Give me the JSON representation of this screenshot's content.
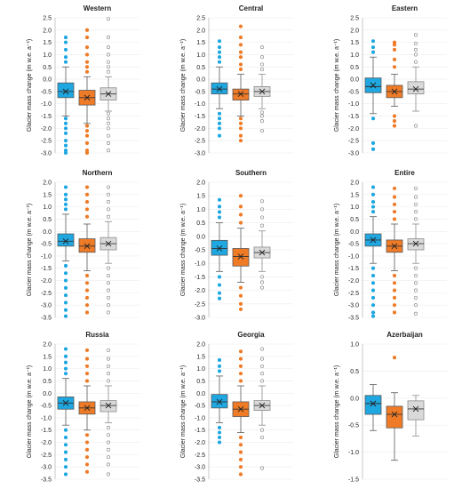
{
  "colors": {
    "A": "#1ea7e1",
    "B": "#ef7b27",
    "C": "#d9d9d9"
  },
  "chart_data": [
    {
      "type": "box",
      "title": "Western",
      "ylabel": "Glacier mass change (m w.e. a⁻¹)",
      "ylim": [
        -3.0,
        2.5
      ],
      "yticks": [
        "2.5",
        "2.0",
        "1.5",
        "1.0",
        "0.5",
        "0.0",
        "-0.5",
        "-1.0",
        "-1.5",
        "-2.0",
        "-2.5",
        "-3.0"
      ],
      "boxes": [
        {
          "q1": -0.75,
          "median": -0.5,
          "q3": -0.15,
          "mean": -0.5,
          "wlo": -1.5,
          "whi": 0.5,
          "outliers": [
            0.7,
            0.9,
            1.2,
            1.5,
            1.7,
            -1.6,
            -1.8,
            -2.0,
            -2.2,
            -2.5,
            -2.7,
            -2.9,
            -3.0
          ]
        },
        {
          "q1": -1.05,
          "median": -0.75,
          "q3": -0.45,
          "mean": -0.75,
          "wlo": -1.8,
          "whi": 0.1,
          "outliers": [
            0.3,
            0.5,
            0.7,
            1.0,
            1.3,
            1.7,
            2.0,
            -1.9,
            -2.1,
            -2.3,
            -2.6,
            -2.9,
            -3.0
          ]
        },
        {
          "q1": -0.85,
          "median": -0.6,
          "q3": -0.35,
          "mean": -0.6,
          "wlo": -1.3,
          "whi": 0.1,
          "outliers": [
            0.3,
            0.5,
            0.7,
            1.0,
            1.3,
            1.7,
            2.45,
            -1.4,
            -1.6,
            -1.8,
            -2.0,
            -2.3,
            -2.6,
            -2.9
          ]
        }
      ]
    },
    {
      "type": "box",
      "title": "Central",
      "ylabel": "Glacier mass change (m w.e. a⁻¹)",
      "ylim": [
        -3.0,
        2.5
      ],
      "yticks": [
        "2.5",
        "2.0",
        "1.5",
        "1.0",
        "0.5",
        "0.0",
        "-0.5",
        "-1.0",
        "-1.5",
        "-2.0",
        "-2.5",
        "-3.0"
      ],
      "boxes": [
        {
          "q1": -0.6,
          "median": -0.4,
          "q3": -0.15,
          "mean": -0.4,
          "wlo": -1.2,
          "whi": 0.5,
          "outliers": [
            0.7,
            0.9,
            1.1,
            1.3,
            1.55,
            -1.4,
            -1.6,
            -1.8,
            -2.0,
            -2.3
          ]
        },
        {
          "q1": -0.85,
          "median": -0.6,
          "q3": -0.4,
          "mean": -0.6,
          "wlo": -1.5,
          "whi": 0.2,
          "outliers": [
            0.4,
            0.6,
            0.9,
            1.1,
            1.4,
            1.7,
            2.15,
            -1.6,
            -1.8,
            -2.0,
            -2.3,
            -2.5
          ]
        },
        {
          "q1": -0.7,
          "median": -0.5,
          "q3": -0.3,
          "mean": -0.5,
          "wlo": -1.2,
          "whi": 0.2,
          "outliers": [
            0.4,
            0.6,
            0.9,
            1.3,
            -1.35,
            -1.5,
            -1.7,
            -2.1
          ]
        }
      ]
    },
    {
      "type": "box",
      "title": "Eastern",
      "ylabel": "Glacier mass change (m w.e. a⁻¹)",
      "ylim": [
        -3.0,
        2.5
      ],
      "yticks": [
        "2.5",
        "2.0",
        "1.5",
        "1.0",
        "0.5",
        "0.0",
        "-0.5",
        "-1.0",
        "-1.5",
        "-2.0",
        "-2.5",
        "-3.0"
      ],
      "boxes": [
        {
          "q1": -0.55,
          "median": -0.3,
          "q3": 0.05,
          "mean": -0.25,
          "wlo": -1.4,
          "whi": 0.9,
          "outliers": [
            1.1,
            1.3,
            1.55,
            -1.6,
            -2.6,
            -2.85
          ]
        },
        {
          "q1": -0.75,
          "median": -0.5,
          "q3": -0.25,
          "mean": -0.5,
          "wlo": -1.1,
          "whi": 0.2,
          "outliers": [
            0.5,
            0.8,
            1.2,
            1.4,
            1.5,
            -1.5,
            -1.7,
            -1.9
          ]
        },
        {
          "q1": -0.6,
          "median": -0.4,
          "q3": -0.1,
          "mean": -0.4,
          "wlo": -1.3,
          "whi": 0.5,
          "outliers": [
            0.7,
            1.0,
            1.2,
            1.45,
            1.8,
            -1.9
          ]
        }
      ]
    },
    {
      "type": "box",
      "title": "Northern",
      "ylabel": "Glacier mass change (m w.e. a⁻¹)",
      "ylim": [
        -3.5,
        2.0
      ],
      "yticks": [
        "2.0",
        "1.5",
        "1.0",
        "0.5",
        "0.0",
        "-0.5",
        "-1.0",
        "-1.5",
        "-2.0",
        "-2.5",
        "-3.0",
        "-3.5"
      ],
      "boxes": [
        {
          "q1": -0.6,
          "median": -0.4,
          "q3": -0.1,
          "mean": -0.4,
          "wlo": -1.2,
          "whi": 0.7,
          "outliers": [
            0.9,
            1.1,
            1.3,
            1.5,
            1.8,
            -1.4,
            -1.7,
            -2.0,
            -2.3,
            -2.6,
            -2.9,
            -3.2,
            -3.45
          ]
        },
        {
          "q1": -0.85,
          "median": -0.6,
          "q3": -0.3,
          "mean": -0.6,
          "wlo": -1.6,
          "whi": 0.3,
          "outliers": [
            0.6,
            0.9,
            1.2,
            1.5,
            1.8,
            -1.8,
            -2.1,
            -2.4,
            -2.7,
            -3.0,
            -3.3
          ]
        },
        {
          "q1": -0.75,
          "median": -0.5,
          "q3": -0.25,
          "mean": -0.5,
          "wlo": -1.3,
          "whi": 0.4,
          "outliers": [
            0.6,
            0.9,
            1.2,
            1.5,
            1.8,
            -1.5,
            -1.8,
            -2.1,
            -2.4,
            -2.7,
            -3.0,
            -3.3
          ]
        }
      ]
    },
    {
      "type": "box",
      "title": "Southern",
      "ylabel": "Glacier mass change (m w.e. a⁻¹)",
      "ylim": [
        -3.0,
        2.0
      ],
      "yticks": [
        "2.0",
        "1.5",
        "1.0",
        "0.5",
        "0.0",
        "-0.5",
        "-1.0",
        "-1.5",
        "-2.0",
        "-2.5",
        "-3.0"
      ],
      "boxes": [
        {
          "q1": -0.7,
          "median": -0.45,
          "q3": -0.15,
          "mean": -0.45,
          "wlo": -1.3,
          "whi": 0.5,
          "outliers": [
            0.7,
            0.9,
            1.1,
            1.35,
            -1.5,
            -1.8,
            -2.1,
            -2.3
          ]
        },
        {
          "q1": -1.1,
          "median": -0.75,
          "q3": -0.45,
          "mean": -0.75,
          "wlo": -1.7,
          "whi": 0.3,
          "outliers": [
            0.5,
            0.8,
            1.1,
            1.5,
            -1.9,
            -2.2,
            -2.5,
            -2.7
          ]
        },
        {
          "q1": -0.8,
          "median": -0.6,
          "q3": -0.4,
          "mean": -0.6,
          "wlo": -1.3,
          "whi": 0.2,
          "outliers": [
            0.4,
            0.7,
            1.0,
            1.3,
            -1.5,
            -1.7,
            -1.9
          ]
        }
      ]
    },
    {
      "type": "box",
      "title": "Entire",
      "ylabel": "Glacier mass change (m w.e. a⁻¹)",
      "ylim": [
        -3.5,
        2.0
      ],
      "yticks": [
        "2.0",
        "1.5",
        "1.0",
        "0.5",
        "0.0",
        "-0.5",
        "-1.0",
        "-1.5",
        "-2.0",
        "-2.5",
        "-3.0",
        "-3.5"
      ],
      "boxes": [
        {
          "q1": -0.6,
          "median": -0.35,
          "q3": -0.1,
          "mean": -0.35,
          "wlo": -1.3,
          "whi": 0.6,
          "outliers": [
            0.8,
            1.0,
            1.2,
            1.5,
            1.8,
            -1.5,
            -1.8,
            -2.1,
            -2.4,
            -2.7,
            -3.0,
            -3.3,
            -3.45
          ]
        },
        {
          "q1": -0.85,
          "median": -0.6,
          "q3": -0.35,
          "mean": -0.6,
          "wlo": -1.6,
          "whi": 0.3,
          "outliers": [
            0.5,
            0.8,
            1.1,
            1.4,
            1.75,
            -1.8,
            -2.1,
            -2.4,
            -2.7,
            -3.0,
            -3.3
          ]
        },
        {
          "q1": -0.75,
          "median": -0.5,
          "q3": -0.3,
          "mean": -0.5,
          "wlo": -1.3,
          "whi": 0.3,
          "outliers": [
            0.5,
            0.8,
            1.1,
            1.4,
            1.75,
            -1.5,
            -1.8,
            -2.1,
            -2.4,
            -2.7,
            -3.0,
            -3.35
          ]
        }
      ]
    },
    {
      "type": "box",
      "title": "Russia",
      "ylabel": "Glacier mass change (m w.e. a⁻¹)",
      "ylim": [
        -3.5,
        2.0
      ],
      "yticks": [
        "2.0",
        "1.5",
        "1.0",
        "0.5",
        "0.0",
        "-0.5",
        "-1.0",
        "-1.5",
        "-2.0",
        "-2.5",
        "-3.0",
        "-3.5"
      ],
      "boxes": [
        {
          "q1": -0.65,
          "median": -0.4,
          "q3": -0.15,
          "mean": -0.4,
          "wlo": -1.3,
          "whi": 0.6,
          "outliers": [
            0.8,
            1.0,
            1.25,
            1.5,
            1.8,
            -1.5,
            -1.8,
            -2.1,
            -2.4,
            -2.7,
            -3.0,
            -3.3
          ]
        },
        {
          "q1": -0.85,
          "median": -0.6,
          "q3": -0.35,
          "mean": -0.6,
          "wlo": -1.5,
          "whi": 0.3,
          "outliers": [
            0.5,
            0.8,
            1.1,
            1.4,
            1.75,
            -1.7,
            -2.0,
            -2.3,
            -2.6,
            -2.9,
            -3.2
          ]
        },
        {
          "q1": -0.75,
          "median": -0.5,
          "q3": -0.3,
          "mean": -0.5,
          "wlo": -1.2,
          "whi": 0.3,
          "outliers": [
            0.5,
            0.8,
            1.1,
            1.4,
            1.75,
            -1.4,
            -1.7,
            -2.0,
            -2.3,
            -2.6,
            -2.9,
            -3.3
          ]
        }
      ]
    },
    {
      "type": "box",
      "title": "Georgia",
      "ylabel": "Glacier mass change (m w.e. a⁻¹)",
      "ylim": [
        -3.5,
        2.0
      ],
      "yticks": [
        "2.0",
        "1.5",
        "1.0",
        "0.5",
        "0.0",
        "-0.5",
        "-1.0",
        "-1.5",
        "-2.0",
        "-2.5",
        "-3.0",
        "-3.5"
      ],
      "boxes": [
        {
          "q1": -0.6,
          "median": -0.35,
          "q3": -0.05,
          "mean": -0.35,
          "wlo": -1.2,
          "whi": 0.7,
          "outliers": [
            0.9,
            1.1,
            1.35,
            -1.4,
            -1.6,
            -1.8,
            -2.0
          ]
        },
        {
          "q1": -0.95,
          "median": -0.65,
          "q3": -0.35,
          "mean": -0.65,
          "wlo": -1.6,
          "whi": 0.3,
          "outliers": [
            0.5,
            0.8,
            1.1,
            1.4,
            1.7,
            -1.8,
            -2.1,
            -2.4,
            -2.7,
            -3.0,
            -3.3
          ]
        },
        {
          "q1": -0.7,
          "median": -0.5,
          "q3": -0.3,
          "mean": -0.5,
          "wlo": -1.3,
          "whi": 0.3,
          "outliers": [
            0.5,
            0.8,
            1.1,
            1.4,
            1.8,
            -1.5,
            -1.8,
            -3.05
          ]
        }
      ]
    },
    {
      "type": "box",
      "title": "Azerbaijan",
      "ylabel": "Glacier mass change (m w.e. a⁻¹)",
      "ylim": [
        -1.5,
        1.0
      ],
      "yticks": [
        "1.0",
        "0.5",
        "0.0",
        "-0.5",
        "-1.0",
        "-1.5"
      ],
      "boxes": [
        {
          "q1": -0.3,
          "median": -0.1,
          "q3": 0.05,
          "mean": -0.1,
          "wlo": -0.6,
          "whi": 0.25,
          "outliers": []
        },
        {
          "q1": -0.55,
          "median": -0.3,
          "q3": -0.15,
          "mean": -0.3,
          "wlo": -1.15,
          "whi": 0.1,
          "outliers": [
            0.75
          ]
        },
        {
          "q1": -0.4,
          "median": -0.2,
          "q3": -0.05,
          "mean": -0.2,
          "wlo": -0.7,
          "whi": 0.05,
          "outliers": []
        }
      ]
    }
  ]
}
